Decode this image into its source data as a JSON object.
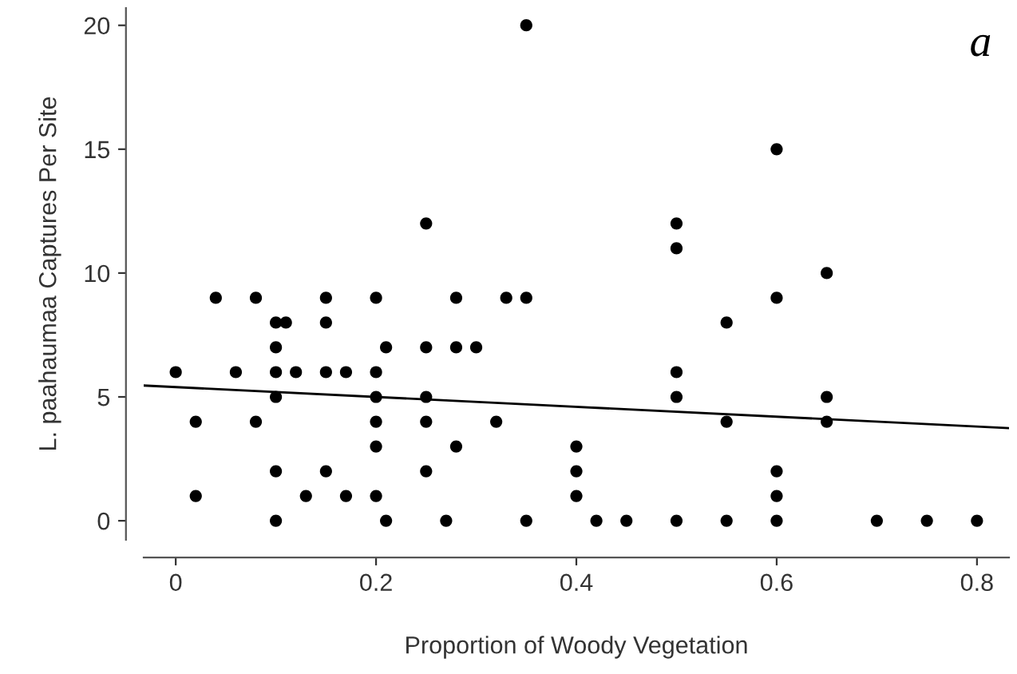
{
  "chart_data": {
    "type": "scatter",
    "xlabel": "Proportion of Woody Vegetation",
    "ylabel": "L. paahaumaa Captures Per Site",
    "annotations": [
      "a"
    ],
    "xlim": [
      -0.032,
      0.832
    ],
    "ylim": [
      -0.77,
      20.7
    ],
    "xticks": [
      0,
      0.2,
      0.4,
      0.6,
      0.8
    ],
    "yticks": [
      0,
      5,
      10,
      15,
      20
    ],
    "marker": "circle",
    "grid": false,
    "series": [
      {
        "color": "#000000",
        "x": [
          0,
          0.02,
          0.02,
          0.04,
          0.06,
          0.08,
          0.08,
          0.1,
          0.1,
          0.1,
          0.1,
          0.1,
          0.1,
          0.11,
          0.12,
          0.13,
          0.15,
          0.15,
          0.15,
          0.15,
          0.17,
          0.17,
          0.2,
          0.2,
          0.2,
          0.2,
          0.2,
          0.2,
          0.21,
          0.21,
          0.25,
          0.25,
          0.25,
          0.25,
          0.25,
          0.27,
          0.28,
          0.28,
          0.28,
          0.3,
          0.32,
          0.33,
          0.35,
          0.35,
          0.35,
          0.4,
          0.4,
          0.4,
          0.42,
          0.45,
          0.5,
          0.5,
          0.5,
          0.5,
          0.5,
          0.55,
          0.55,
          0.55,
          0.6,
          0.6,
          0.6,
          0.6,
          0.6,
          0.65,
          0.65,
          0.65,
          0.7,
          0.75,
          0.8
        ],
        "values": [
          6,
          4,
          1,
          9,
          6,
          9,
          4,
          8,
          7,
          6,
          5,
          2,
          0,
          8,
          6,
          1,
          9,
          8,
          6,
          2,
          6,
          1,
          9,
          6,
          5,
          4,
          3,
          1,
          7,
          0,
          12,
          7,
          5,
          4,
          2,
          0,
          9,
          7,
          3,
          7,
          4,
          9,
          20,
          9,
          0,
          3,
          2,
          1,
          0,
          0,
          12,
          11,
          6,
          5,
          0,
          8,
          4,
          0,
          15,
          9,
          2,
          1,
          0,
          10,
          5,
          4,
          0,
          0,
          0
        ]
      },
      {
        "color": "#000000",
        "type": "line",
        "marker": "none",
        "x": [
          -0.032,
          0.832
        ],
        "values": [
          5.46,
          3.74
        ]
      }
    ]
  }
}
